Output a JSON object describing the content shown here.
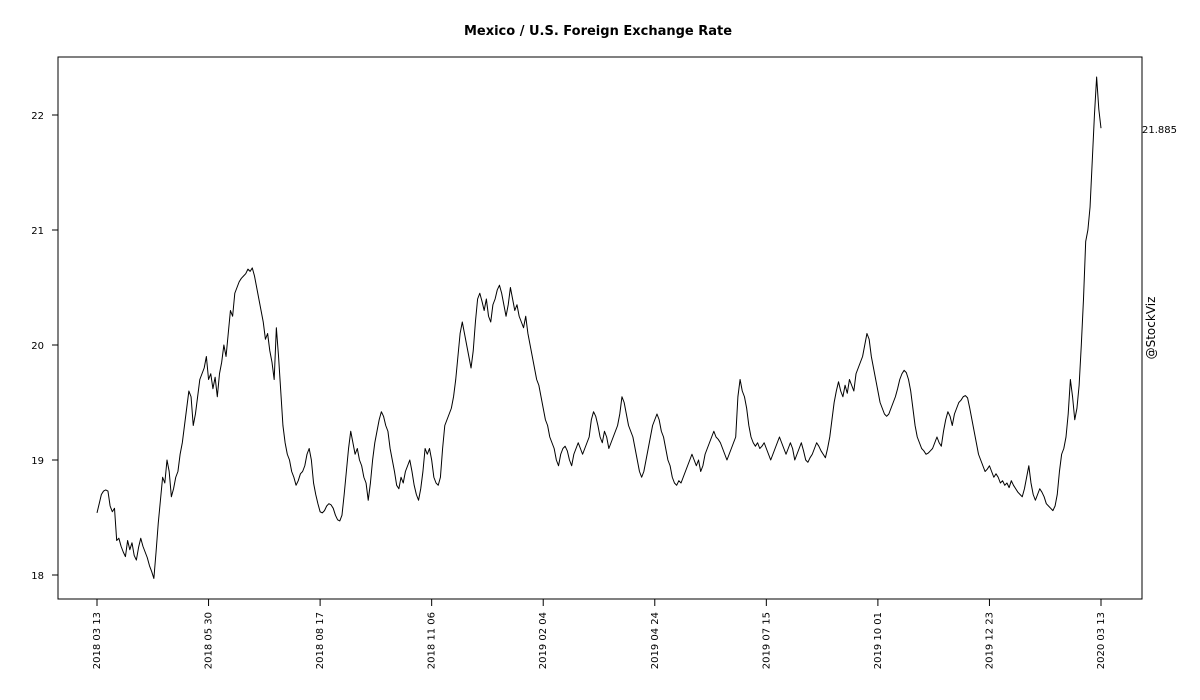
{
  "chart_data": {
    "type": "line",
    "title": "Mexico / U.S. Foreign Exchange Rate",
    "xlabel": "",
    "ylabel": "",
    "ylim": [
      17.85,
      22.5
    ],
    "y_ticks": [
      "18",
      "19",
      "20",
      "21",
      "22"
    ],
    "x_ticks": [
      "2018 03 13",
      "2018 05 30",
      "2018 08 17",
      "2018 11 06",
      "2019 02 04",
      "2019 04 24",
      "2019 07 15",
      "2019 10 01",
      "2019 12 23",
      "2020 03 13"
    ],
    "last_value_label": "21.885",
    "watermark": "@StockViz",
    "grid": false,
    "series": [
      {
        "values": [
          18.54,
          18.62,
          18.7,
          18.73,
          18.74,
          18.73,
          18.6,
          18.55,
          18.58,
          18.3,
          18.32,
          18.25,
          18.2,
          18.16,
          18.3,
          18.22,
          18.28,
          18.17,
          18.13,
          18.24,
          18.32,
          18.25,
          18.2,
          18.15,
          18.08,
          18.03,
          17.97,
          18.2,
          18.45,
          18.65,
          18.85,
          18.8,
          19.0,
          18.9,
          18.68,
          18.75,
          18.85,
          18.9,
          19.05,
          19.15,
          19.3,
          19.45,
          19.6,
          19.55,
          19.3,
          19.4,
          19.55,
          19.7,
          19.75,
          19.8,
          19.9,
          19.7,
          19.75,
          19.62,
          19.72,
          19.55,
          19.75,
          19.85,
          20.0,
          19.9,
          20.1,
          20.3,
          20.25,
          20.45,
          20.5,
          20.55,
          20.58,
          20.6,
          20.62,
          20.66,
          20.64,
          20.67,
          20.6,
          20.5,
          20.4,
          20.3,
          20.2,
          20.05,
          20.1,
          19.95,
          19.85,
          19.7,
          20.15,
          19.9,
          19.6,
          19.3,
          19.15,
          19.05,
          19.0,
          18.9,
          18.85,
          18.78,
          18.82,
          18.88,
          18.9,
          18.95,
          19.05,
          19.1,
          19.0,
          18.8,
          18.7,
          18.62,
          18.55,
          18.54,
          18.56,
          18.6,
          18.62,
          18.61,
          18.58,
          18.52,
          18.48,
          18.47,
          18.52,
          18.7,
          18.9,
          19.1,
          19.25,
          19.15,
          19.05,
          19.1,
          19.0,
          18.95,
          18.85,
          18.8,
          18.65,
          18.8,
          19.0,
          19.15,
          19.25,
          19.35,
          19.42,
          19.38,
          19.3,
          19.25,
          19.1,
          19.0,
          18.9,
          18.78,
          18.75,
          18.85,
          18.8,
          18.9,
          18.95,
          19.0,
          18.9,
          18.78,
          18.7,
          18.65,
          18.75,
          18.9,
          19.1,
          19.05,
          19.1,
          19.0,
          18.85,
          18.8,
          18.78,
          18.85,
          19.1,
          19.3,
          19.35,
          19.4,
          19.45,
          19.55,
          19.7,
          19.9,
          20.1,
          20.2,
          20.1,
          20.0,
          19.9,
          19.8,
          19.95,
          20.2,
          20.4,
          20.45,
          20.38,
          20.3,
          20.4,
          20.25,
          20.2,
          20.35,
          20.4,
          20.48,
          20.52,
          20.45,
          20.35,
          20.25,
          20.35,
          20.5,
          20.4,
          20.3,
          20.35,
          20.25,
          20.2,
          20.15,
          20.25,
          20.1,
          20.0,
          19.9,
          19.8,
          19.7,
          19.65,
          19.55,
          19.45,
          19.35,
          19.3,
          19.2,
          19.15,
          19.1,
          19.0,
          18.95,
          19.05,
          19.1,
          19.12,
          19.08,
          19.0,
          18.95,
          19.05,
          19.1,
          19.15,
          19.1,
          19.05,
          19.1,
          19.15,
          19.2,
          19.35,
          19.42,
          19.38,
          19.3,
          19.2,
          19.15,
          19.25,
          19.2,
          19.1,
          19.15,
          19.2,
          19.25,
          19.3,
          19.4,
          19.55,
          19.5,
          19.4,
          19.3,
          19.25,
          19.2,
          19.1,
          19.0,
          18.9,
          18.85,
          18.9,
          19.0,
          19.1,
          19.2,
          19.3,
          19.35,
          19.4,
          19.35,
          19.25,
          19.2,
          19.1,
          19.0,
          18.95,
          18.85,
          18.8,
          18.78,
          18.82,
          18.8,
          18.85,
          18.9,
          18.95,
          19.0,
          19.05,
          19.0,
          18.95,
          19.0,
          18.9,
          18.95,
          19.05,
          19.1,
          19.15,
          19.2,
          19.25,
          19.2,
          19.18,
          19.15,
          19.1,
          19.05,
          19.0,
          19.05,
          19.1,
          19.15,
          19.2,
          19.55,
          19.7,
          19.6,
          19.55,
          19.45,
          19.3,
          19.2,
          19.15,
          19.12,
          19.15,
          19.1,
          19.12,
          19.15,
          19.1,
          19.05,
          19.0,
          19.05,
          19.1,
          19.15,
          19.2,
          19.15,
          19.1,
          19.05,
          19.1,
          19.15,
          19.1,
          19.0,
          19.05,
          19.1,
          19.15,
          19.08,
          19.0,
          18.98,
          19.02,
          19.05,
          19.1,
          19.15,
          19.12,
          19.08,
          19.05,
          19.02,
          19.1,
          19.2,
          19.35,
          19.5,
          19.6,
          19.68,
          19.6,
          19.55,
          19.65,
          19.58,
          19.7,
          19.65,
          19.6,
          19.75,
          19.8,
          19.85,
          19.9,
          20.0,
          20.1,
          20.05,
          19.9,
          19.8,
          19.7,
          19.6,
          19.5,
          19.45,
          19.4,
          19.38,
          19.4,
          19.45,
          19.5,
          19.55,
          19.62,
          19.7,
          19.75,
          19.78,
          19.76,
          19.7,
          19.6,
          19.45,
          19.3,
          19.2,
          19.15,
          19.1,
          19.08,
          19.05,
          19.06,
          19.08,
          19.1,
          19.15,
          19.2,
          19.15,
          19.12,
          19.25,
          19.35,
          19.42,
          19.38,
          19.3,
          19.4,
          19.45,
          19.5,
          19.52,
          19.55,
          19.56,
          19.54,
          19.45,
          19.35,
          19.25,
          19.15,
          19.05,
          19.0,
          18.95,
          18.9,
          18.92,
          18.95,
          18.9,
          18.85,
          18.88,
          18.85,
          18.8,
          18.82,
          18.78,
          18.8,
          18.76,
          18.82,
          18.78,
          18.75,
          18.72,
          18.7,
          18.68,
          18.75,
          18.85,
          18.95,
          18.8,
          18.7,
          18.65,
          18.7,
          18.75,
          18.72,
          18.68,
          18.62,
          18.6,
          18.58,
          18.56,
          18.6,
          18.7,
          18.9,
          19.05,
          19.1,
          19.2,
          19.4,
          19.7,
          19.55,
          19.35,
          19.45,
          19.65,
          20.0,
          20.4,
          20.9,
          21.0,
          21.2,
          21.6,
          22.0,
          22.33,
          22.05,
          21.885
        ]
      }
    ]
  }
}
